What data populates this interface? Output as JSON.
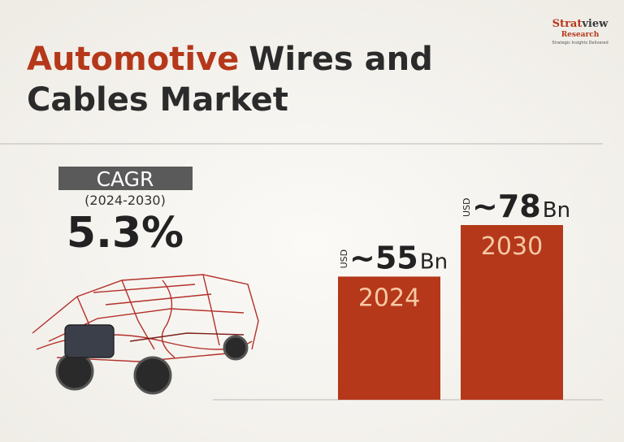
{
  "chart_data": {
    "type": "bar",
    "title": {
      "highlight": "Automotive",
      "lines": [
        "Wires and",
        "Cables Market"
      ]
    },
    "cagr": {
      "label": "CAGR",
      "period": "(2024-2030)",
      "value": "5.3%"
    },
    "categories": [
      "2024",
      "2030"
    ],
    "values": [
      55,
      78
    ],
    "value_labels": [
      "~55",
      "~78"
    ],
    "unit_prefix": "USD",
    "unit_suffix": "Bn",
    "color": "#b5381a",
    "label_color": "#f7c8a4"
  },
  "logo": {
    "name_part1": "Strat",
    "name_part2": "view",
    "name_line2": "Research",
    "tagline": "Strategic Insights Delivered"
  }
}
